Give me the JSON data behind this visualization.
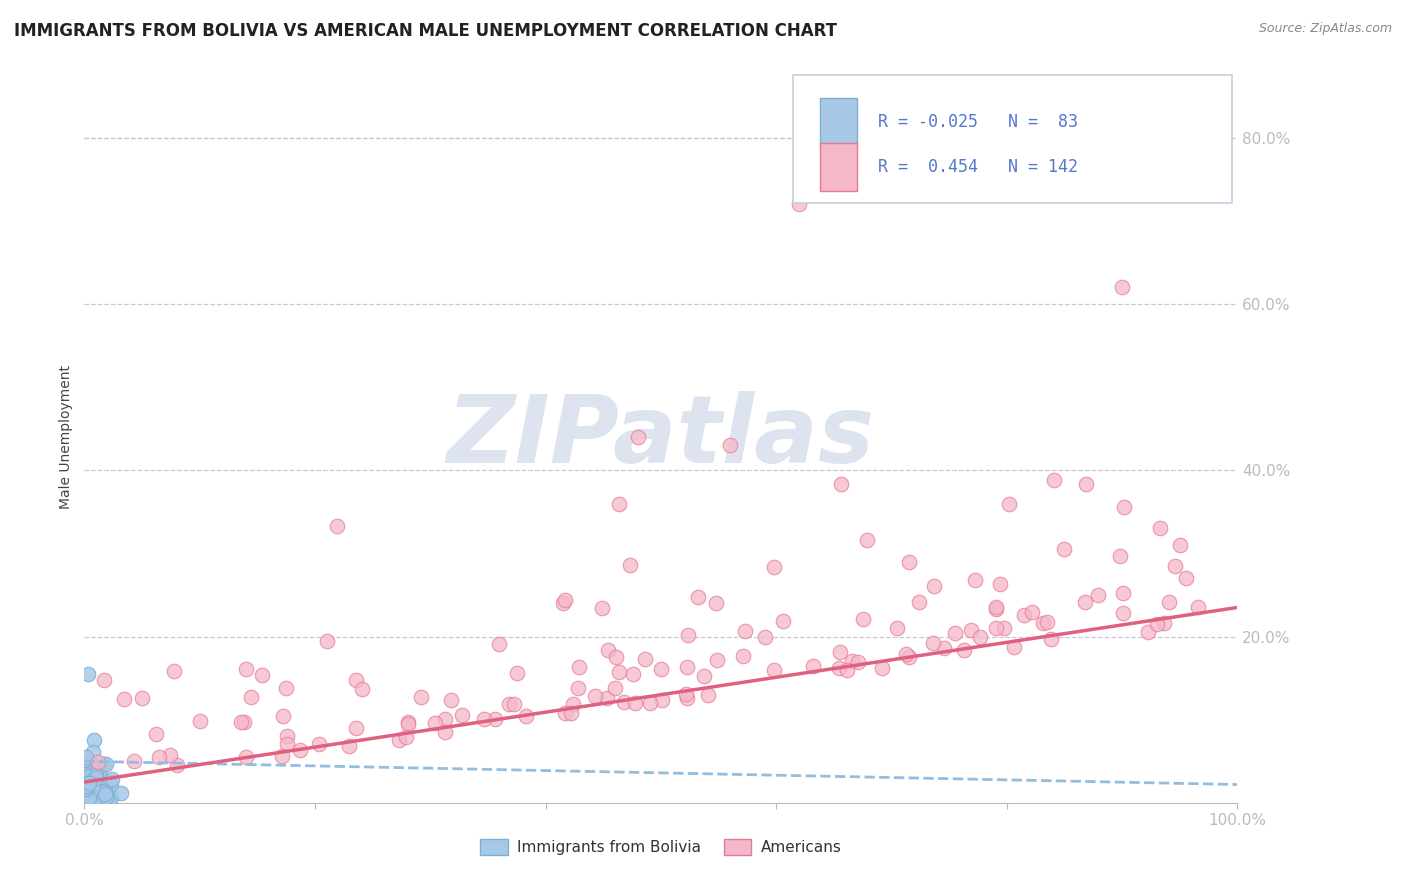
{
  "title": "IMMIGRANTS FROM BOLIVIA VS AMERICAN MALE UNEMPLOYMENT CORRELATION CHART",
  "source_text": "Source: ZipAtlas.com",
  "ylabel": "Male Unemployment",
  "xlim": [
    0,
    1.0
  ],
  "ylim": [
    0,
    0.88
  ],
  "x_ticks": [
    0.0,
    0.2,
    0.4,
    0.6,
    0.8,
    1.0
  ],
  "y_ticks": [
    0.0,
    0.2,
    0.4,
    0.6,
    0.8
  ],
  "y_tick_labels": [
    "",
    "20.0%",
    "40.0%",
    "60.0%",
    "80.0%"
  ],
  "blue_color": "#a8c8e8",
  "blue_edge_color": "#7bafd4",
  "pink_color": "#f4b8c8",
  "pink_edge_color": "#e87898",
  "blue_line_color": "#90bde0",
  "pink_line_color": "#e06080",
  "legend_blue_r": "-0.025",
  "legend_blue_n": "83",
  "legend_pink_r": "0.454",
  "legend_pink_n": "142",
  "legend_label_blue": "Immigrants from Bolivia",
  "legend_label_pink": "Americans",
  "watermark": "ZIPatlas",
  "tick_color": "#5577cc",
  "grid_color": "#c8c8d8",
  "title_color": "#222222",
  "source_color": "#888888",
  "ylabel_color": "#444444"
}
